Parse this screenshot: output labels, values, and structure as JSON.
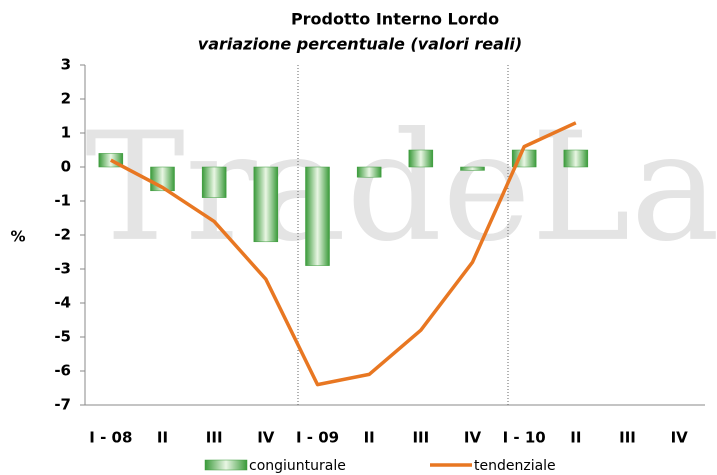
{
  "chart_data": {
    "type": "combo",
    "title": "Prodotto Interno Lordo",
    "subtitle": "variazione percentuale (valori reali)",
    "watermark": "TradeLab",
    "ylabel": "%",
    "categories": [
      "I - 08",
      "II",
      "III",
      "IV",
      "I - 09",
      "II",
      "III",
      "IV",
      "I - 10",
      "II",
      "III",
      "IV"
    ],
    "series": [
      {
        "name": "congiunturale",
        "type": "bar",
        "color": "#3a9a3a",
        "values": [
          0.4,
          -0.7,
          -0.9,
          -2.2,
          -2.9,
          -0.3,
          0.5,
          -0.1,
          0.5,
          0.5,
          null,
          null
        ]
      },
      {
        "name": "tendenziale",
        "type": "line",
        "color": "#e87722",
        "values": [
          0.2,
          -0.6,
          -1.6,
          -3.3,
          -6.4,
          -6.1,
          -4.8,
          -2.8,
          0.6,
          1.3,
          null,
          null
        ]
      }
    ],
    "ylim": [
      -7,
      3
    ],
    "yticks": [
      -7,
      -6,
      -5,
      -4,
      -3,
      -2,
      -1,
      0,
      1,
      2,
      3
    ],
    "grid": false
  }
}
